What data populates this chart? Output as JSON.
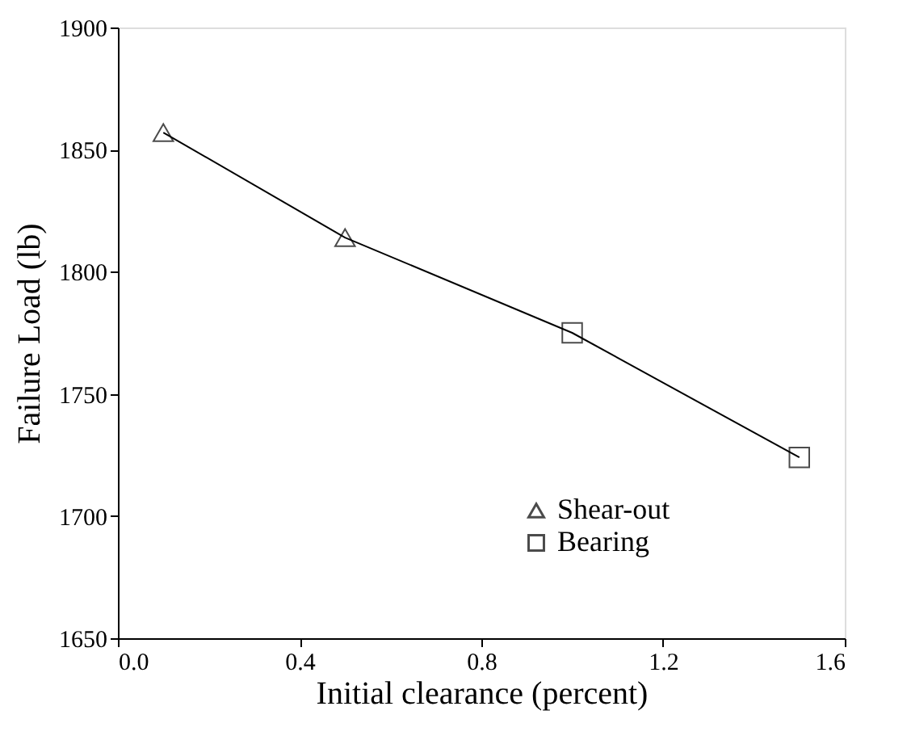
{
  "chart_data": {
    "type": "line",
    "xlabel": "Initial clearance (percent)",
    "ylabel": "Failure Load (lb)",
    "xlim": [
      0.0,
      1.6
    ],
    "xticks": [
      {
        "value": 0,
        "label": "0.0"
      },
      0.4,
      0.8,
      1.2,
      1.6
    ],
    "ylim": [
      1650,
      1900
    ],
    "yticks": [
      1650,
      1700,
      1750,
      1800,
      1850,
      1900
    ],
    "grid": false,
    "legend": "bottom right",
    "series": [
      {
        "type": "line",
        "color": "#000000",
        "marker": "none",
        "line_style": "solid",
        "x": [
          0.1,
          0.5,
          1.0,
          1.5
        ],
        "values": [
          1857,
          1814,
          1775,
          1724
        ]
      },
      {
        "type": "scatter",
        "name": "Shear-out",
        "color": "#000000",
        "marker": "triangle",
        "x": [
          0.1,
          0.5
        ],
        "values": [
          1857,
          1814
        ]
      },
      {
        "type": "scatter",
        "name": "Bearing",
        "color": "#000000",
        "marker": "square",
        "x": [
          1.0,
          1.5
        ],
        "values": [
          1775,
          1724
        ]
      }
    ]
  }
}
